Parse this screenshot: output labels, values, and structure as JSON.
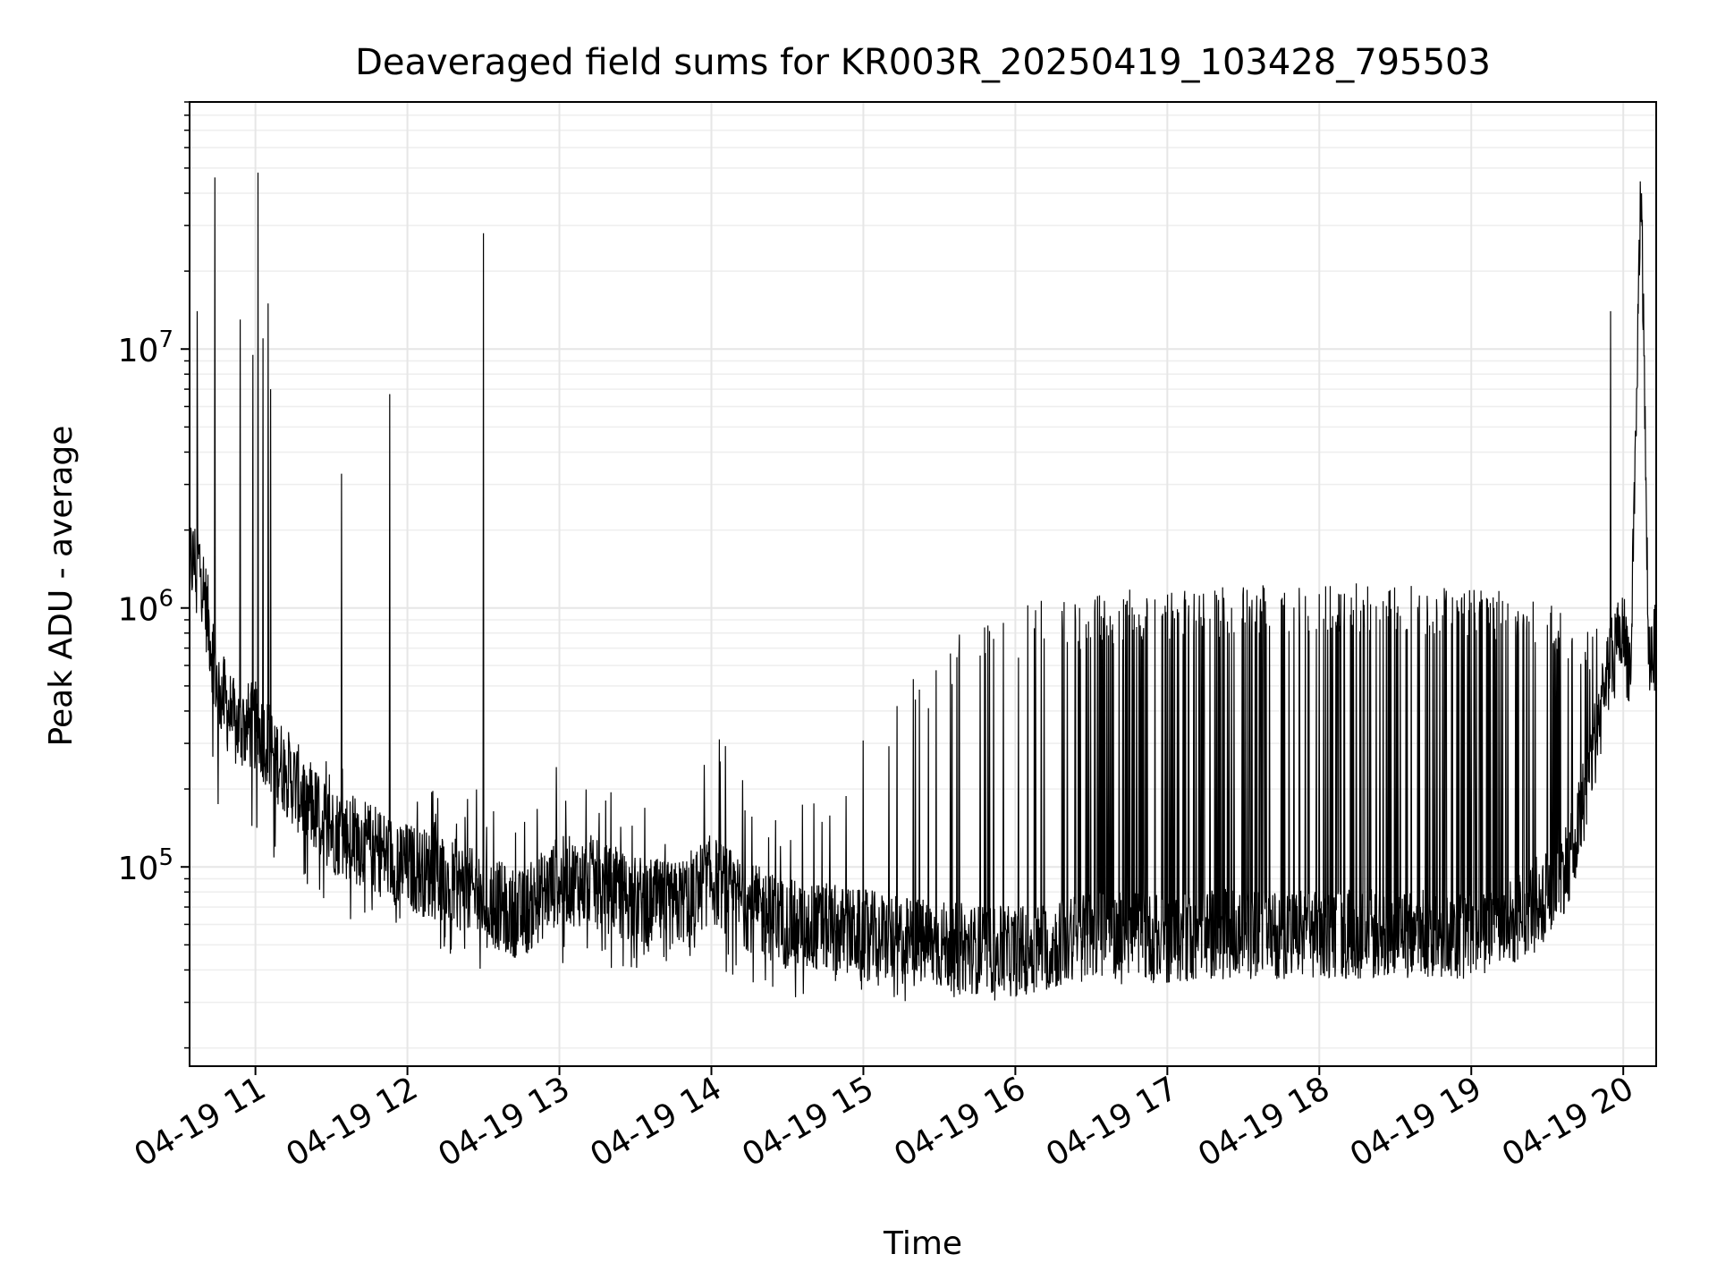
{
  "chart_data": {
    "type": "line",
    "title": "Deaveraged field sums for KR003R_20250419_103428_795503",
    "xlabel": "Time",
    "ylabel": "Peak ADU - average",
    "yscale": "log",
    "grid": true,
    "legend": "none",
    "line_color": "#000000",
    "grid_color": "#e6e6e6",
    "xlim": [
      "2025-04-19 10:34",
      "2025-04-19 20:13"
    ],
    "ylim": [
      17000,
      90000000
    ],
    "x_ticks": [
      {
        "t": "2025-04-19 11:00",
        "label": "04-19 11"
      },
      {
        "t": "2025-04-19 12:00",
        "label": "04-19 12"
      },
      {
        "t": "2025-04-19 13:00",
        "label": "04-19 13"
      },
      {
        "t": "2025-04-19 14:00",
        "label": "04-19 14"
      },
      {
        "t": "2025-04-19 15:00",
        "label": "04-19 15"
      },
      {
        "t": "2025-04-19 16:00",
        "label": "04-19 16"
      },
      {
        "t": "2025-04-19 17:00",
        "label": "04-19 17"
      },
      {
        "t": "2025-04-19 18:00",
        "label": "04-19 18"
      },
      {
        "t": "2025-04-19 19:00",
        "label": "04-19 19"
      },
      {
        "t": "2025-04-19 20:00",
        "label": "04-19 20"
      }
    ],
    "y_ticks": [
      {
        "value": 100000,
        "base": "10",
        "exp": "5"
      },
      {
        "value": 1000000,
        "base": "10",
        "exp": "6"
      },
      {
        "value": 10000000,
        "base": "10",
        "exp": "7"
      }
    ],
    "series": [
      {
        "x": [
          "2025-04-19 10:34",
          "2025-04-19 10:38",
          "2025-04-19 10:45",
          "2025-04-19 10:52",
          "2025-04-19 11:00",
          "2025-04-19 11:10",
          "2025-04-19 11:20",
          "2025-04-19 11:30",
          "2025-04-19 11:45",
          "2025-04-19 12:00",
          "2025-04-19 12:15",
          "2025-04-19 12:30",
          "2025-04-19 12:45",
          "2025-04-19 13:00",
          "2025-04-19 13:15",
          "2025-04-19 13:30",
          "2025-04-19 13:45",
          "2025-04-19 14:00",
          "2025-04-19 14:15",
          "2025-04-19 14:30",
          "2025-04-19 14:45",
          "2025-04-19 15:00",
          "2025-04-19 15:15",
          "2025-04-19 15:30",
          "2025-04-19 15:45",
          "2025-04-19 16:00",
          "2025-04-19 16:15",
          "2025-04-19 16:30",
          "2025-04-19 16:45",
          "2025-04-19 17:00",
          "2025-04-19 17:15",
          "2025-04-19 17:30",
          "2025-04-19 17:45",
          "2025-04-19 18:00",
          "2025-04-19 18:15",
          "2025-04-19 18:30",
          "2025-04-19 18:45",
          "2025-04-19 19:00",
          "2025-04-19 19:15",
          "2025-04-19 19:30",
          "2025-04-19 19:40",
          "2025-04-19 19:50",
          "2025-04-19 19:55",
          "2025-04-19 20:00",
          "2025-04-19 20:03",
          "2025-04-19 20:07",
          "2025-04-19 20:10",
          "2025-04-19 20:13"
        ],
        "base": [
          1500000,
          1500000,
          500000,
          350000,
          350000,
          250000,
          180000,
          140000,
          120000,
          100000,
          90000,
          75000,
          65000,
          90000,
          85000,
          75000,
          70000,
          90000,
          70000,
          60000,
          58000,
          55000,
          52000,
          50000,
          48000,
          47000,
          50000,
          55000,
          55000,
          52000,
          55000,
          55000,
          55000,
          55000,
          55000,
          55000,
          55000,
          55000,
          60000,
          80000,
          110000,
          350000,
          600000,
          800000,
          550000,
          47000000,
          650000,
          700000
        ],
        "hi": [
          1500000,
          1700000,
          700000,
          500000,
          500000,
          350000,
          280000,
          250000,
          220000,
          200000,
          200000,
          220000,
          200000,
          250000,
          200000,
          200000,
          180000,
          400000,
          200000,
          180000,
          200000,
          350000,
          500000,
          700000,
          900000,
          1000000,
          1100000,
          1100000,
          1200000,
          1200000,
          1200000,
          1250000,
          1250000,
          1250000,
          1250000,
          1250000,
          1250000,
          1200000,
          1200000,
          1100000,
          900000,
          900000,
          900000,
          1000000,
          700000,
          55000000,
          900000,
          900000
        ],
        "lo": [
          1000000,
          800000,
          150000,
          120000,
          120000,
          90000,
          75000,
          60000,
          55000,
          50000,
          45000,
          40000,
          38000,
          40000,
          40000,
          40000,
          40000,
          40000,
          35000,
          30000,
          30000,
          30000,
          30000,
          30000,
          30000,
          30000,
          32000,
          35000,
          35000,
          35000,
          37000,
          37000,
          37000,
          37000,
          37000,
          37000,
          37000,
          37000,
          40000,
          50000,
          80000,
          250000,
          400000,
          500000,
          400000,
          35000000,
          450000,
          550000
        ],
        "spikes": [
          {
            "t": "2025-04-19 10:37",
            "v": 14000000
          },
          {
            "t": "2025-04-19 10:44",
            "v": 46000000
          },
          {
            "t": "2025-04-19 10:54",
            "v": 13000000
          },
          {
            "t": "2025-04-19 10:59",
            "v": 9500000
          },
          {
            "t": "2025-04-19 11:01",
            "v": 48000000
          },
          {
            "t": "2025-04-19 11:03",
            "v": 11000000
          },
          {
            "t": "2025-04-19 11:05",
            "v": 15000000
          },
          {
            "t": "2025-04-19 11:06",
            "v": 7000000
          },
          {
            "t": "2025-04-19 11:34",
            "v": 3300000
          },
          {
            "t": "2025-04-19 11:53",
            "v": 6700000
          },
          {
            "t": "2025-04-19 12:30",
            "v": 28000000
          },
          {
            "t": "2025-04-19 19:55",
            "v": 14000000
          }
        ]
      }
    ]
  }
}
